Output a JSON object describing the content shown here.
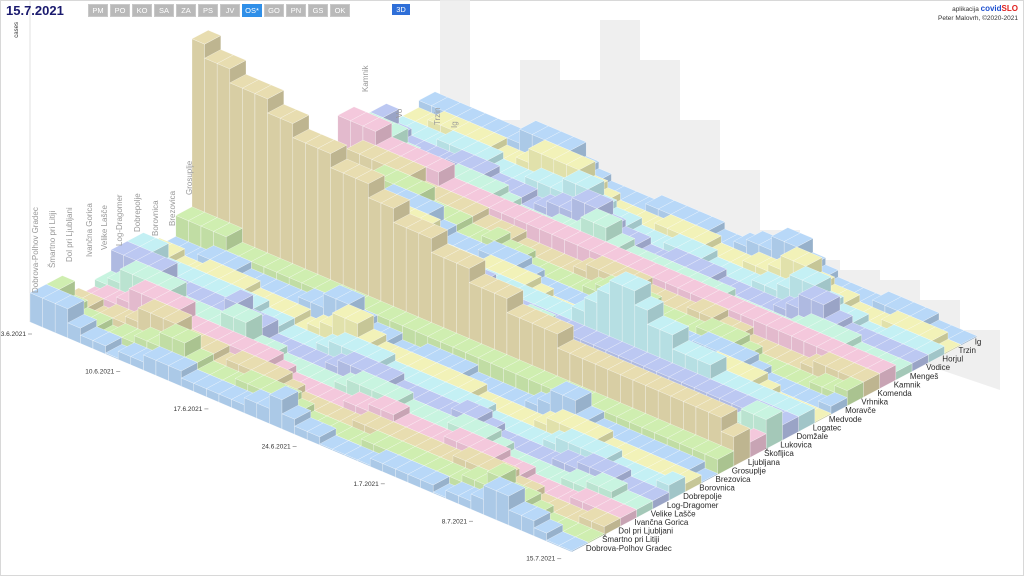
{
  "header": {
    "date": "15.7.2021",
    "ylabel": "cases",
    "tabs": [
      "PM",
      "PO",
      "KO",
      "SA",
      "ZA",
      "PS",
      "JV",
      "OS*",
      "GO",
      "PN",
      "GS",
      "OK"
    ],
    "active_tab": "OS*",
    "view_button": "3D"
  },
  "app": {
    "prefix": "aplikacija",
    "brand_part1": "covid",
    "brand_part2": "SLO",
    "credit": "Peter Malovrh, ©2020-2021"
  },
  "colors": {
    "palette": [
      "#b8d8f8",
      "#cfeeb0",
      "#e8ddb0",
      "#f4c8dc",
      "#c8f4e0",
      "#bcc8f2",
      "#c4f0f4",
      "#f2f2b8"
    ],
    "background_bars": "#ececec",
    "accent": "#2f8fe8"
  },
  "chart_data": {
    "type": "bar3d",
    "municipalities": [
      "Dobrova-Polhov Gradec",
      "Šmartno pri Litiji",
      "Dol pri Ljubljani",
      "Ivančna Gorica",
      "Velike Lašče",
      "Log-Dragomer",
      "Dobrepolje",
      "Borovnica",
      "Brezovica",
      "Grosuplje",
      "Ljubljana",
      "Škofljica",
      "Lukovica",
      "Domžale",
      "Logatec",
      "Medvode",
      "Moravče",
      "Vrhnika",
      "Komenda",
      "Kamnik",
      "Mengeš",
      "Vodice",
      "Horjul",
      "Trzin",
      "Ig"
    ],
    "back_labels": [
      "Dobrova-Polhov Gradec",
      "Šmartno pri Litiji",
      "Dol pri Ljubljani",
      "Ivančna Gorica",
      "Velike Lašče",
      "Log-Dragomer",
      "Dobrepolje",
      "Borovnica",
      "Brezovica",
      "Grosuplje",
      "Kamnik",
      "Vo",
      "Trzin",
      "Ig"
    ],
    "date_ticks": [
      "3.6.2021",
      "10.6.2021",
      "17.6.2021",
      "24.6.2021",
      "1.7.2021",
      "8.7.2021",
      "15.7.2021"
    ],
    "ylabel": "cases",
    "peaks": [
      {
        "municipality": "Ljubljana",
        "values": [
          14,
          13,
          13,
          12,
          12,
          12,
          11,
          11,
          10,
          10,
          10,
          9,
          9,
          9,
          8,
          8,
          7,
          7,
          7,
          6,
          6,
          6,
          5,
          5,
          5,
          4,
          4,
          4,
          4,
          3,
          3,
          3,
          3,
          3,
          3,
          3,
          3,
          3,
          3,
          3,
          3,
          3,
          2
        ]
      },
      {
        "municipality": "Kamnik",
        "values": [
          3,
          3,
          3,
          2,
          2,
          2,
          2,
          2,
          1,
          1,
          1,
          1,
          1,
          1,
          1,
          1,
          1,
          1,
          1,
          1,
          1,
          1,
          1,
          1,
          1,
          1,
          1,
          1,
          1,
          1,
          1,
          1,
          1,
          1,
          1,
          1,
          1,
          1,
          1,
          1,
          1,
          1,
          1
        ]
      },
      {
        "municipality": "Domžale",
        "values": [
          5,
          4,
          5,
          4,
          4,
          3,
          3,
          3,
          3,
          3,
          3,
          2,
          2,
          2,
          2,
          2,
          2,
          1,
          2,
          1,
          1,
          1,
          1,
          1,
          1,
          1,
          1,
          1,
          1,
          1,
          1,
          1,
          1,
          1,
          1,
          1,
          1,
          1,
          1,
          1,
          1,
          1,
          1
        ]
      },
      {
        "municipality": "Grosuplje",
        "values": [
          2,
          2,
          2,
          2,
          1,
          1,
          1,
          1,
          1,
          1,
          1,
          1,
          1,
          1,
          1,
          1,
          1,
          1,
          1,
          1,
          1,
          1,
          1,
          1,
          1,
          1,
          1,
          1,
          1,
          1,
          1,
          1,
          1,
          1,
          1,
          1,
          1,
          1,
          1,
          1,
          1,
          1,
          1
        ]
      },
      {
        "municipality": "Logatec",
        "values": [
          1,
          1,
          1,
          1,
          1,
          1,
          1,
          1,
          1,
          1,
          1,
          1,
          1,
          1,
          1,
          1,
          1,
          1,
          1,
          1,
          1,
          1,
          1,
          1,
          1,
          2,
          3,
          4,
          5,
          5,
          4,
          3,
          3,
          2,
          2,
          2,
          1,
          1,
          1,
          1,
          1,
          1,
          1
        ]
      }
    ]
  }
}
